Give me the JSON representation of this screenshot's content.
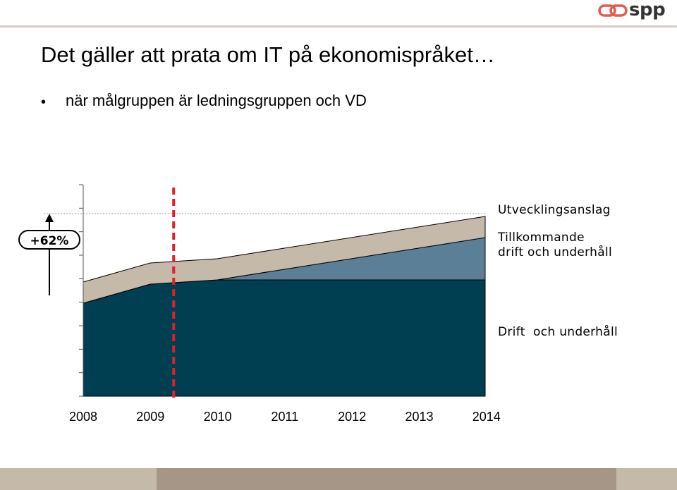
{
  "header": {
    "logo_text": "spp",
    "logo_icon": "spp-chain-logo-icon",
    "accent_color": "#e05c50"
  },
  "slide": {
    "title": "Det gäller att prata om IT på ekonomispråket…",
    "bullet": "när målgruppen är ledningsgruppen och VD"
  },
  "chart_data": {
    "type": "area",
    "stacked": true,
    "x": [
      2008,
      2009,
      2010,
      2011,
      2012,
      2013,
      2014
    ],
    "tick_labels": [
      "2008",
      "2009",
      "2010",
      "2011",
      "2012",
      "2013",
      "2014"
    ],
    "ylim": [
      0,
      100
    ],
    "y_axis_labels": false,
    "grid": false,
    "series": [
      {
        "name": "Drift  och underhåll",
        "points": [
          [
            2008,
            44
          ],
          [
            2009,
            53
          ],
          [
            2010,
            55
          ],
          [
            2014,
            55
          ]
        ],
        "color": "#003e52"
      },
      {
        "name": "Tillkommande\ndrift och underhåll",
        "points": [
          [
            2008,
            0
          ],
          [
            2010,
            0
          ],
          [
            2014,
            20
          ]
        ],
        "color": "#5b7f97"
      },
      {
        "name": "Utvecklingsanslag",
        "points": [
          [
            2008,
            10
          ],
          [
            2009,
            10
          ],
          [
            2010,
            10
          ],
          [
            2014,
            10
          ]
        ],
        "color": "#c5b9aa"
      }
    ],
    "annotations": [
      {
        "type": "vertical-dashed-line",
        "x": 2009.35,
        "color": "#e31e24"
      },
      {
        "type": "growth-arrow",
        "label": "+62%",
        "from": 55,
        "to": 85
      }
    ]
  },
  "footer_colors": [
    "#c5b9aa",
    "#a59688",
    "#c5b9aa"
  ]
}
